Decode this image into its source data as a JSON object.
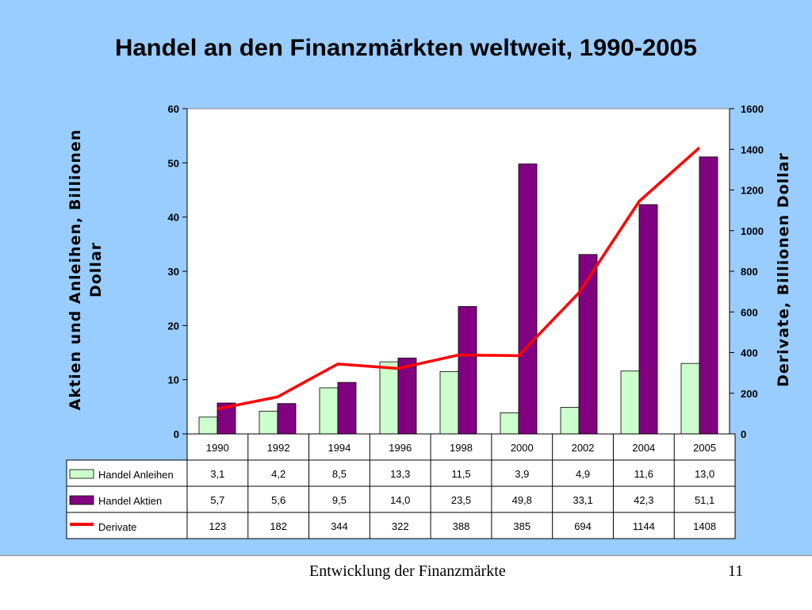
{
  "slide": {
    "footer_title": "Entwicklung der Finanzmärkte",
    "page_number": "11"
  },
  "colors": {
    "background": "#99ccff",
    "anleihen": "#ccffcc",
    "aktien": "#800080",
    "derivate": "#ff0000"
  },
  "chart_data": {
    "type": "bar",
    "title": "Handel an den Finanzmärkten weltweit, 1990-2005",
    "ylabel_left": "Aktien und Anleihen, Billionen Dollar",
    "ylabel_right": "Derivate, Billionen Dollar",
    "categories": [
      "1990",
      "1992",
      "1994",
      "1996",
      "1998",
      "2000",
      "2002",
      "2004",
      "2005"
    ],
    "ylim_left": [
      0,
      60
    ],
    "yticks_left": [
      "0",
      "10",
      "20",
      "30",
      "40",
      "50",
      "60"
    ],
    "ylim_right": [
      0,
      1600
    ],
    "yticks_right": [
      "0",
      "200",
      "400",
      "600",
      "800",
      "1000",
      "1200",
      "1400",
      "1600"
    ],
    "grid": false,
    "legend": "data-table-below",
    "series": [
      {
        "name": "Handel Anleihen",
        "type": "bar",
        "axis": "left",
        "values": [
          3.1,
          4.2,
          8.5,
          13.3,
          11.5,
          3.9,
          4.9,
          11.6,
          13.0
        ],
        "labels": [
          "3,1",
          "4,2",
          "8,5",
          "13,3",
          "11,5",
          "3,9",
          "4,9",
          "11,6",
          "13,0"
        ]
      },
      {
        "name": "Handel Aktien",
        "type": "bar",
        "axis": "left",
        "values": [
          5.7,
          5.6,
          9.5,
          14.0,
          23.5,
          49.8,
          33.1,
          42.3,
          51.1
        ],
        "labels": [
          "5,7",
          "5,6",
          "9,5",
          "14,0",
          "23,5",
          "49,8",
          "33,1",
          "42,3",
          "51,1"
        ]
      },
      {
        "name": "Derivate",
        "type": "line",
        "axis": "right",
        "values": [
          123,
          182,
          344,
          322,
          388,
          385,
          694,
          1144,
          1408
        ],
        "labels": [
          "123",
          "182",
          "344",
          "322",
          "388",
          "385",
          "694",
          "1144",
          "1408"
        ]
      }
    ]
  }
}
